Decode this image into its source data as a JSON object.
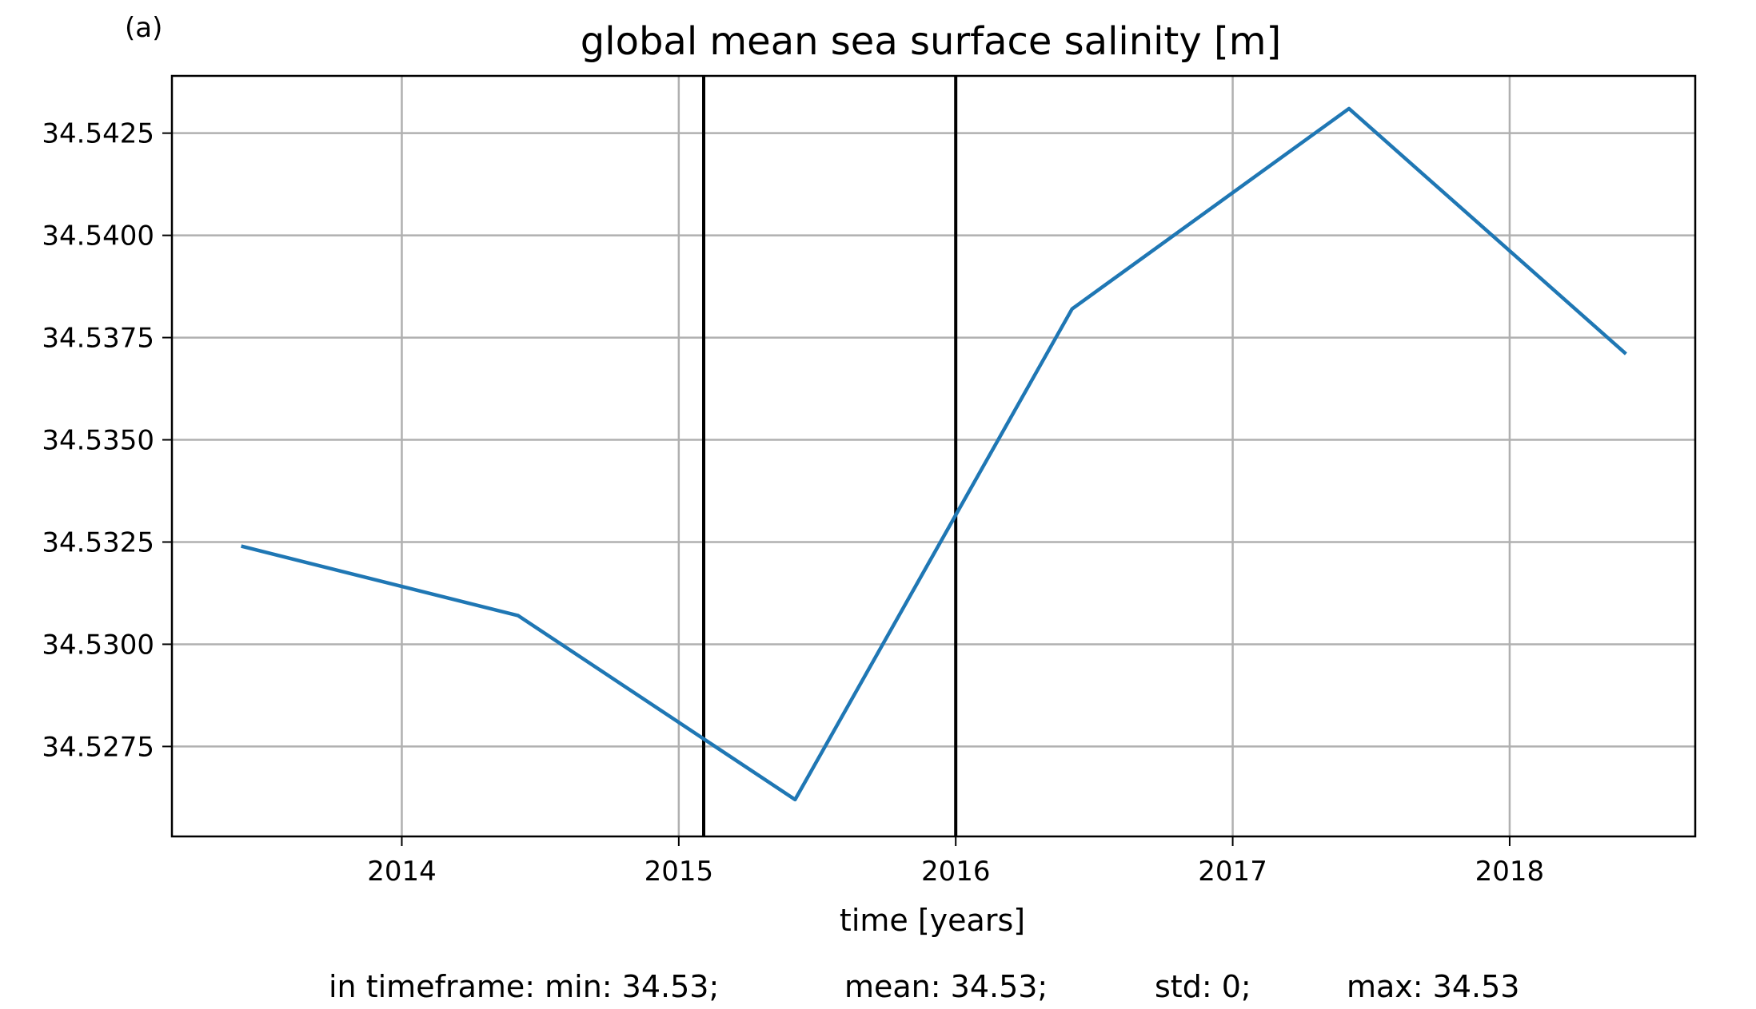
{
  "figure": {
    "panel_label": "(a)",
    "stats": {
      "min": "in timeframe: min: 34.53;",
      "mean": "mean: 34.53;",
      "std": "std: 0;",
      "max": "max: 34.53"
    }
  },
  "colors": {
    "series_line": "#1f77b4",
    "vertical_markers": "#000000",
    "grid": "#b0b0b0",
    "axes": "#000000"
  },
  "chart_data": {
    "type": "line",
    "title": "global mean sea surface salinity [m]",
    "xlabel": "time [years]",
    "ylabel": "",
    "xlim": [
      2013.17,
      2018.67
    ],
    "ylim": [
      34.5253,
      34.5439
    ],
    "grid": true,
    "x_ticks": [
      2014,
      2015,
      2016,
      2017,
      2018
    ],
    "x_tick_labels": [
      "2014",
      "2015",
      "2016",
      "2017",
      "2018"
    ],
    "y_ticks": [
      34.5275,
      34.53,
      34.5325,
      34.535,
      34.5375,
      34.54,
      34.5425
    ],
    "y_tick_labels": [
      "34.5275",
      "34.5300",
      "34.5325",
      "34.5350",
      "34.5375",
      "34.5400",
      "34.5425"
    ],
    "series": [
      {
        "x": [
          2013.42,
          2014.42,
          2015.42,
          2016.42,
          2017.42,
          2018.42
        ],
        "y": [
          34.5324,
          34.5307,
          34.5262,
          34.5382,
          34.5431,
          34.5371
        ]
      }
    ],
    "vertical_lines": [
      2015.09,
      2016.0
    ]
  }
}
